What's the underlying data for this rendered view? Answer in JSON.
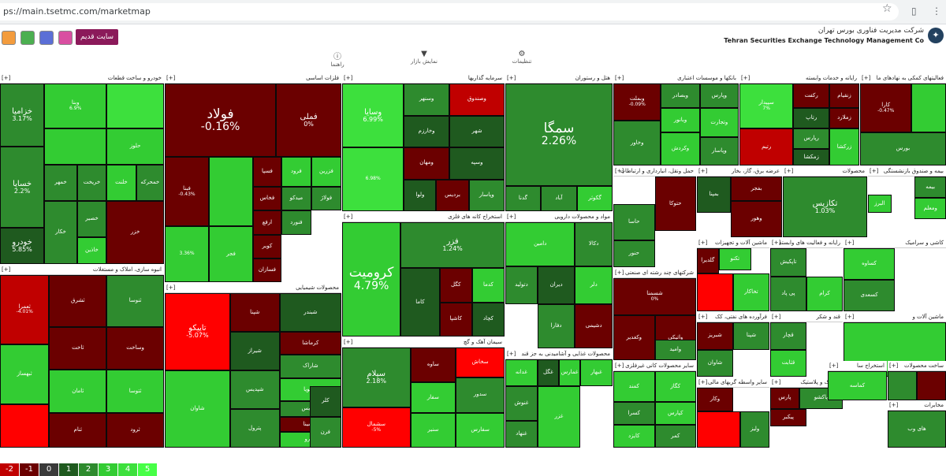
{
  "browser": {
    "url": "ps://main.tsetmc.com/marketmap",
    "star_icon": "star-icon",
    "profile_icon": "sidepanel-icon",
    "menu_icon": "kebab-menu-icon"
  },
  "header": {
    "old_site_label": "سایت قدیم",
    "company_fa": "شرکت مدیریت فناوری بورس تهران",
    "company_en": "Tehran Securities Exchange Technology Management Co",
    "toolbar_icons": [
      "grid-icon",
      "search-icon",
      "calendar-icon",
      "chart-icon"
    ]
  },
  "subnav": {
    "items": [
      {
        "label": "راهنما",
        "icon": "help-icon"
      },
      {
        "label": "نمایش بازار",
        "icon": "filter-icon"
      },
      {
        "label": "تنظیمات",
        "icon": "settings-icon"
      }
    ]
  },
  "colors": {
    "red3": "#ff0000",
    "red2": "#c00000",
    "red1": "#6b0000",
    "neutral": "#3a3a3a",
    "g1": "#1f5a1f",
    "g2": "#2e8b2e",
    "g3": "#33cc33",
    "g4": "#3de03d",
    "g5": "#47ff47"
  },
  "sections": [
    {
      "title": "خودرو و ساخت قطعات",
      "cells": [
        {
          "n": "خزامیا",
          "p": "3.17%",
          "c": "g2",
          "size": "m"
        },
        {
          "n": "وبنا",
          "p": "6.9%",
          "c": "g3"
        },
        {
          "n": "",
          "p": "",
          "c": "g4"
        },
        {
          "n": "",
          "p": "",
          "c": "g3"
        },
        {
          "n": "خساپا",
          "p": "2.2%",
          "c": "g2",
          "size": "m"
        },
        {
          "n": "حلوز",
          "p": "",
          "c": "g3"
        },
        {
          "n": "خمهر",
          "p": "",
          "c": "g2"
        },
        {
          "n": "خریخت",
          "p": "",
          "c": "g2"
        },
        {
          "n": "خلنت",
          "p": "",
          "c": "g3"
        },
        {
          "n": "خصیر",
          "p": "",
          "c": "g2"
        },
        {
          "n": "خمحرکه",
          "p": "",
          "c": "g2"
        },
        {
          "n": "خودرو",
          "p": "5.85%",
          "c": "g1",
          "size": "m"
        },
        {
          "n": "خکار",
          "p": "",
          "c": "g2"
        },
        {
          "n": "خاذین",
          "p": "",
          "c": "g3"
        },
        {
          "n": "خزر",
          "p": "",
          "c": "red1"
        }
      ]
    },
    {
      "title": "فلزات اساسی",
      "cells": [
        {
          "n": "فولاد",
          "p": "-0.16%",
          "c": "red1",
          "size": "l"
        },
        {
          "n": "فملی",
          "p": "0%",
          "c": "red1",
          "size": "m"
        },
        {
          "n": "فبنا",
          "p": "-0.43%",
          "c": "red1"
        },
        {
          "n": "",
          "p": "",
          "c": "g3"
        },
        {
          "n": "فسپا",
          "p": "",
          "c": "red1"
        },
        {
          "n": "فرود",
          "p": "",
          "c": "g3"
        },
        {
          "n": "فزرین",
          "p": "",
          "c": "g3"
        },
        {
          "n": "فخاس",
          "p": "",
          "c": "red1"
        },
        {
          "n": "میدکو",
          "p": "",
          "c": "g2"
        },
        {
          "n": "فولاژ",
          "p": "",
          "c": "g2"
        },
        {
          "n": "فنورد",
          "p": "",
          "c": "g2"
        },
        {
          "n": "ارفع",
          "p": "",
          "c": "red1"
        },
        {
          "n": "کویر",
          "p": "",
          "c": "red1"
        },
        {
          "n": "فسازان",
          "p": "",
          "c": "red1"
        },
        {
          "n": "",
          "p": "3.36%",
          "c": "g3"
        },
        {
          "n": "فجر",
          "p": "",
          "c": "g3"
        }
      ]
    },
    {
      "title": "سرمایه گذاریها",
      "cells": [
        {
          "n": "وسایا",
          "p": "6.99%",
          "c": "g4",
          "size": "m"
        },
        {
          "n": "وسنهر",
          "p": "",
          "c": "g2"
        },
        {
          "n": "وصندوق",
          "p": "",
          "c": "red2"
        },
        {
          "n": "شهر",
          "p": "",
          "c": "g1"
        },
        {
          "n": "وخارزم",
          "p": "",
          "c": "g1"
        },
        {
          "n": "ومهان",
          "p": "",
          "c": "red1"
        },
        {
          "n": "وسپه",
          "p": "",
          "c": "g1"
        },
        {
          "n": "",
          "p": "6.98%",
          "c": "g4"
        },
        {
          "n": "ولوا",
          "p": "",
          "c": "g1"
        },
        {
          "n": "برديس",
          "p": "",
          "c": "red1"
        },
        {
          "n": "وپاسار",
          "p": "",
          "c": "g2"
        }
      ]
    },
    {
      "title": "هتل و رستوران",
      "cells": [
        {
          "n": "سمگا",
          "p": "2.26%",
          "c": "g2",
          "size": "l"
        },
        {
          "n": "آباد",
          "p": "",
          "c": "g2"
        },
        {
          "n": "گکوثر",
          "p": "",
          "c": "g3"
        },
        {
          "n": "گدنا",
          "p": "",
          "c": "g2"
        }
      ]
    },
    {
      "title": "بانکها و موسسات اعتباری",
      "cells": [
        {
          "n": "وبملت",
          "p": "-0.09%",
          "c": "red1"
        },
        {
          "n": "وبصادر",
          "p": "",
          "c": "g2"
        },
        {
          "n": "وپارس",
          "p": "",
          "c": "g2"
        },
        {
          "n": "وبانور",
          "p": "",
          "c": "g3"
        },
        {
          "n": "وکردش",
          "p": "",
          "c": "g3"
        },
        {
          "n": "وتجارت",
          "p": "",
          "c": "g3"
        },
        {
          "n": "وخاور",
          "p": "",
          "c": "g2"
        },
        {
          "n": "وپاسار",
          "p": "",
          "c": "g2"
        }
      ]
    },
    {
      "title": "رایانه و خدمات وابسته",
      "cells": [
        {
          "n": "سپیدار",
          "p": "7%",
          "c": "g4"
        },
        {
          "n": "رکفت",
          "p": "",
          "c": "red1"
        },
        {
          "n": "زنقیام",
          "p": "",
          "c": "red1"
        },
        {
          "n": "رتاپ",
          "p": "",
          "c": "g1"
        },
        {
          "n": "زملارد",
          "p": "",
          "c": "red1"
        },
        {
          "n": "رتیم",
          "p": "",
          "c": "red2"
        },
        {
          "n": "رپارس",
          "p": "",
          "c": "g2"
        },
        {
          "n": "زمکشا",
          "p": "",
          "c": "g1"
        },
        {
          "n": "زرکشا",
          "p": "",
          "c": "g3"
        }
      ]
    },
    {
      "title": "فعالیتهای کمکی به نهادهای ما",
      "cells": [
        {
          "n": "کارا",
          "p": "-0.47%",
          "c": "red1"
        },
        {
          "n": "بورس",
          "p": "",
          "c": "g2"
        },
        {
          "n": "",
          "p": "",
          "c": "g3"
        }
      ]
    },
    {
      "title": "انبوه سازی، املاک و مستغلات",
      "cells": [
        {
          "n": "ثعمرا",
          "p": "-4.01%",
          "c": "red2"
        },
        {
          "n": "ثبهساز",
          "p": "",
          "c": "g3"
        },
        {
          "n": "ثشرق",
          "p": "",
          "c": "red1"
        },
        {
          "n": "ثنوسا",
          "p": "",
          "c": "g2"
        },
        {
          "n": "ثاخت",
          "p": "",
          "c": "red1"
        },
        {
          "n": "وساخت",
          "p": "",
          "c": "red1"
        },
        {
          "n": "ثامان",
          "p": "",
          "c": "g3"
        },
        {
          "n": "ثتوسا",
          "p": "",
          "c": "g3"
        },
        {
          "n": "ثرود",
          "p": "",
          "c": "red1"
        },
        {
          "n": "",
          "p": "",
          "c": "red3"
        },
        {
          "n": "ثنام",
          "p": "",
          "c": "red1"
        }
      ]
    },
    {
      "title": "محصولات شیمیایی",
      "cells": [
        {
          "n": "تاپیکو",
          "p": "-5.07%",
          "c": "red3",
          "size": "m"
        },
        {
          "n": "شپنا",
          "p": "",
          "c": "red1"
        },
        {
          "n": "شبندر",
          "p": "",
          "c": "g1"
        },
        {
          "n": "شپدیس",
          "p": "",
          "c": "g2"
        },
        {
          "n": "شیراز",
          "p": "",
          "c": "g1"
        },
        {
          "n": "کرماشا",
          "p": "",
          "c": "red1"
        },
        {
          "n": "شاراک",
          "p": "",
          "c": "g2"
        },
        {
          "n": "شگویا",
          "p": "",
          "c": "g3"
        },
        {
          "n": "پترول",
          "p": "",
          "c": "g2"
        },
        {
          "n": "شاوان",
          "p": "",
          "c": "g3"
        },
        {
          "n": "شیدیس",
          "p": "",
          "c": "g2"
        },
        {
          "n": "شسینا",
          "p": "",
          "c": "red1"
        },
        {
          "n": "وپترو",
          "p": "",
          "c": "g3"
        },
        {
          "n": "فرن",
          "p": "",
          "c": "g2"
        },
        {
          "n": "کلر",
          "p": "",
          "c": "g1"
        }
      ]
    },
    {
      "title": "استخراج کانه های فلزی",
      "cells": [
        {
          "n": "کرومیت",
          "p": "4.79%",
          "c": "g3",
          "size": "l"
        },
        {
          "n": "فزر",
          "p": "1.24%",
          "c": "g2",
          "size": "m"
        },
        {
          "n": "کگل",
          "p": "",
          "c": "red1"
        },
        {
          "n": "کدما",
          "p": "",
          "c": "g3"
        },
        {
          "n": "کاشپا",
          "p": "",
          "c": "red1"
        },
        {
          "n": "کاما",
          "p": "",
          "c": "g1"
        },
        {
          "n": "کچاد",
          "p": "",
          "c": "g1"
        }
      ]
    },
    {
      "title": "مواد و محصولات دارویی",
      "cells": [
        {
          "n": "دامین",
          "p": "",
          "c": "g3"
        },
        {
          "n": "دتولید",
          "p": "",
          "c": "g2"
        },
        {
          "n": "دیران",
          "p": "",
          "c": "g1"
        },
        {
          "n": "دکالا",
          "p": "",
          "c": "g2"
        },
        {
          "n": "دفارا",
          "p": "",
          "c": "g2"
        },
        {
          "n": "دلر",
          "p": "",
          "c": "g3"
        },
        {
          "n": "دشیمی",
          "p": "",
          "c": "red1"
        }
      ]
    },
    {
      "title": "سیمان آهک و گچ",
      "cells": [
        {
          "n": "سیلام",
          "p": "2.18%",
          "c": "g2",
          "size": "m"
        },
        {
          "n": "سخاش",
          "p": "",
          "c": "red3"
        },
        {
          "n": "سفار",
          "p": "",
          "c": "g3"
        },
        {
          "n": "سنیر",
          "p": "",
          "c": "g3"
        },
        {
          "n": "سفارس",
          "p": "",
          "c": "g3"
        },
        {
          "n": "سشمال",
          "p": "-5%",
          "c": "red3"
        },
        {
          "n": "ساوه",
          "p": "",
          "c": "red1"
        },
        {
          "n": "سدور",
          "p": "",
          "c": "g2"
        }
      ]
    },
    {
      "title": "محصولات غذایی و آشامیدنی به جز قند",
      "cells": [
        {
          "n": "غدانه",
          "p": "",
          "c": "g3"
        },
        {
          "n": "غگل",
          "p": "",
          "c": "g1"
        },
        {
          "n": "غنوش",
          "p": "",
          "c": "g2"
        },
        {
          "n": "غبهار",
          "p": "",
          "c": "g3"
        },
        {
          "n": "غمارس",
          "p": "",
          "c": "g3"
        },
        {
          "n": "غنهاد",
          "p": "",
          "c": "g2"
        },
        {
          "n": "غزر",
          "p": "",
          "c": "g3"
        }
      ]
    },
    {
      "title": "حمل ونقل، انبارداری و ارتباطات",
      "cells": [
        {
          "n": "حاسا",
          "p": "",
          "c": "g2"
        },
        {
          "n": "حتوکا",
          "p": "",
          "c": "red1"
        },
        {
          "n": "حنور",
          "p": "",
          "c": "g2"
        }
      ]
    },
    {
      "title": "شرکتهای چند رشته ای صنعتی",
      "cells": [
        {
          "n": "شسمنا",
          "p": "0%",
          "c": "red1"
        },
        {
          "n": "وکغدیر",
          "p": "",
          "c": "red1"
        },
        {
          "n": "واتیکی",
          "p": "",
          "c": "red1"
        },
        {
          "n": "وامید",
          "p": "",
          "c": "g2"
        }
      ]
    },
    {
      "title": "سایر محصولات کانی غیرفلزی",
      "cells": [
        {
          "n": "کمند",
          "p": "",
          "c": "g3"
        },
        {
          "n": "کسرا",
          "p": "",
          "c": "g2"
        },
        {
          "n": "کگاز",
          "p": "",
          "c": "g3"
        },
        {
          "n": "کایزد",
          "p": "",
          "c": "g3"
        },
        {
          "n": "کپارس",
          "p": "",
          "c": "g3"
        },
        {
          "n": "کمر",
          "p": "",
          "c": "g2"
        }
      ]
    },
    {
      "title": "عرضه برق، گاز، بخار",
      "cells": [
        {
          "n": "بفجر",
          "p": "",
          "c": "red1"
        },
        {
          "n": "بمپنا",
          "p": "",
          "c": "g1"
        },
        {
          "n": "وهور",
          "p": "",
          "c": "red1"
        }
      ]
    },
    {
      "title": "محصولات",
      "cells": [
        {
          "n": "تکازیس",
          "p": "1.03%",
          "c": "g2",
          "size": "m"
        }
      ]
    },
    {
      "title": "بیمه و صندوق بازنشستگی",
      "cells": [
        {
          "n": "بیمه",
          "p": "",
          "c": "g2"
        },
        {
          "n": "ومعلم",
          "p": "",
          "c": "g3"
        },
        {
          "n": "البرز",
          "p": "",
          "c": "g3"
        }
      ]
    },
    {
      "title": "ماشین آلات و تجهیزات",
      "cells": [
        {
          "n": "تکنو",
          "p": "",
          "c": "g3"
        },
        {
          "n": "گلدیرا",
          "p": "",
          "c": "red1"
        },
        {
          "n": "",
          "p": "",
          "c": "red3"
        },
        {
          "n": "تخاکار",
          "p": "",
          "c": "g3"
        }
      ]
    },
    {
      "title": "رایانه و فعالیت های وابسته",
      "cells": [
        {
          "n": "تاپکیش",
          "p": "",
          "c": "g2"
        },
        {
          "n": "پی پاد",
          "p": "",
          "c": "g2"
        },
        {
          "n": "کرام",
          "p": "",
          "c": "g3"
        }
      ]
    },
    {
      "title": "کاشی و سرامیک",
      "cells": [
        {
          "n": "کساوه",
          "p": "",
          "c": "g3"
        },
        {
          "n": "کسعدی",
          "p": "",
          "c": "g2"
        }
      ]
    },
    {
      "title": "فرآورده های نفتی، کک",
      "cells": [
        {
          "n": "شبریز",
          "p": "",
          "c": "red1"
        },
        {
          "n": "شپنا",
          "p": "",
          "c": "g2"
        },
        {
          "n": "شاوان",
          "p": "",
          "c": "g2"
        }
      ]
    },
    {
      "title": "قند و شکر",
      "cells": [
        {
          "n": "قچار",
          "p": "",
          "c": "g2"
        },
        {
          "n": "قثابت",
          "p": "",
          "c": "g3"
        }
      ]
    },
    {
      "title": "ماشین آلات و",
      "cells": [
        {
          "n": "",
          "p": "",
          "c": "g3"
        }
      ]
    },
    {
      "title": "سایر واسطه گریهای مالی",
      "cells": [
        {
          "n": "وکار",
          "p": "",
          "c": "red1"
        },
        {
          "n": "",
          "p": "",
          "c": "red3"
        },
        {
          "n": "ولیز",
          "p": "",
          "c": "g2"
        }
      ]
    },
    {
      "title": "لاستیک و پلاستیک",
      "cells": [
        {
          "n": "پارس",
          "p": "",
          "c": "red1"
        },
        {
          "n": "پاکشو",
          "p": "",
          "c": "g2"
        },
        {
          "n": "پیکبر",
          "p": "",
          "c": "red1"
        }
      ]
    },
    {
      "title": "استخراج سا",
      "cells": [
        {
          "n": "کماسه",
          "p": "",
          "c": "g3"
        }
      ]
    },
    {
      "title": "ساخت محصولات",
      "cells": [
        {
          "n": "",
          "p": "",
          "c": "g2"
        },
        {
          "n": "",
          "p": "",
          "c": "red1"
        }
      ]
    },
    {
      "title": "مخابرات",
      "cells": [
        {
          "n": "های وب",
          "p": "",
          "c": "g2"
        }
      ]
    },
    {
      "title": "ساخت",
      "cells": [
        {
          "n": "لپارس",
          "p": "",
          "c": "red3"
        }
      ]
    }
  ],
  "legend": [
    {
      "label": "-2",
      "c": "red2"
    },
    {
      "label": "-1",
      "c": "red1"
    },
    {
      "label": "0",
      "c": "neutral"
    },
    {
      "label": "1",
      "c": "g1"
    },
    {
      "label": "2",
      "c": "g2"
    },
    {
      "label": "3",
      "c": "g3"
    },
    {
      "label": "4",
      "c": "g4"
    },
    {
      "label": "5",
      "c": "g5"
    }
  ]
}
